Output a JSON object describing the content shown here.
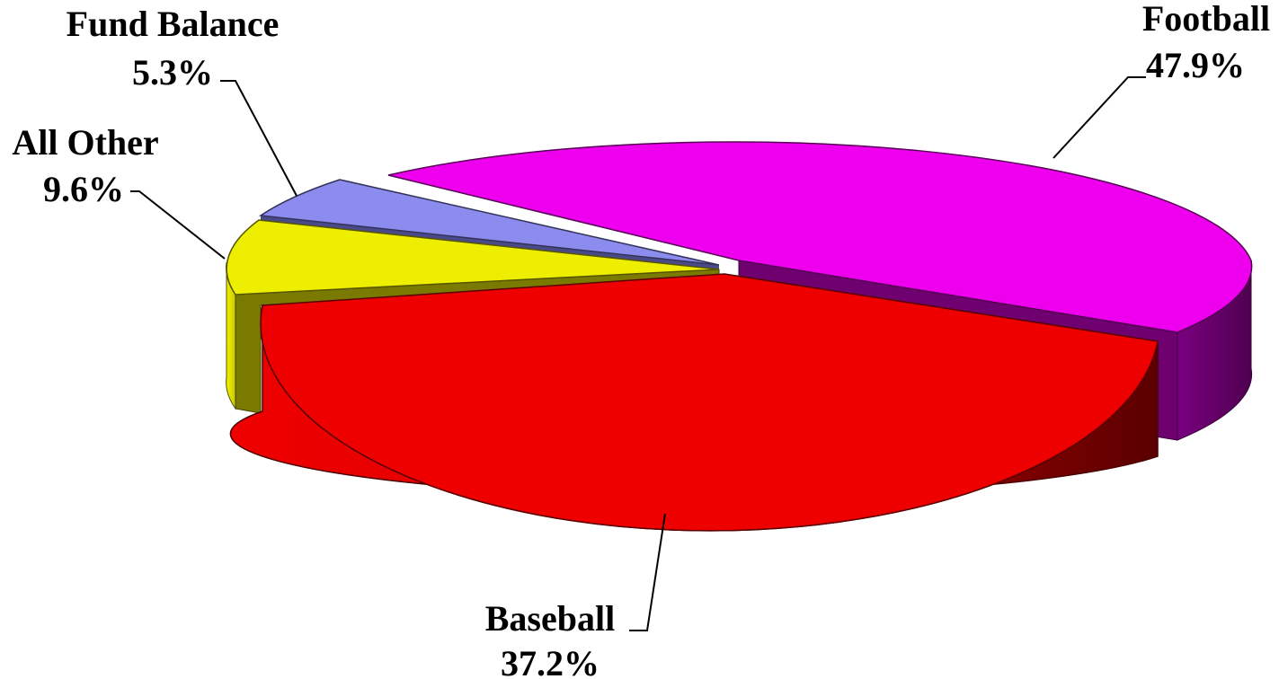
{
  "chart_data": {
    "type": "pie",
    "style": "3d-exploded",
    "slices": [
      {
        "label": "Football",
        "value": 47.9,
        "value_label": "47.9%",
        "color": "#ee00ee",
        "side_color": "#66006a"
      },
      {
        "label": "Baseball",
        "value": 37.2,
        "value_label": "37.2%",
        "color": "#ee0000",
        "side_color": "#8a0000"
      },
      {
        "label": "All Other",
        "value": 9.6,
        "value_label": "9.6%",
        "color": "#eeee00",
        "side_color": "#7a7a00"
      },
      {
        "label": "Fund Balance",
        "value": 5.3,
        "value_label": "5.3%",
        "color": "#8c8cee",
        "side_color": "#4a4a8a"
      }
    ]
  }
}
